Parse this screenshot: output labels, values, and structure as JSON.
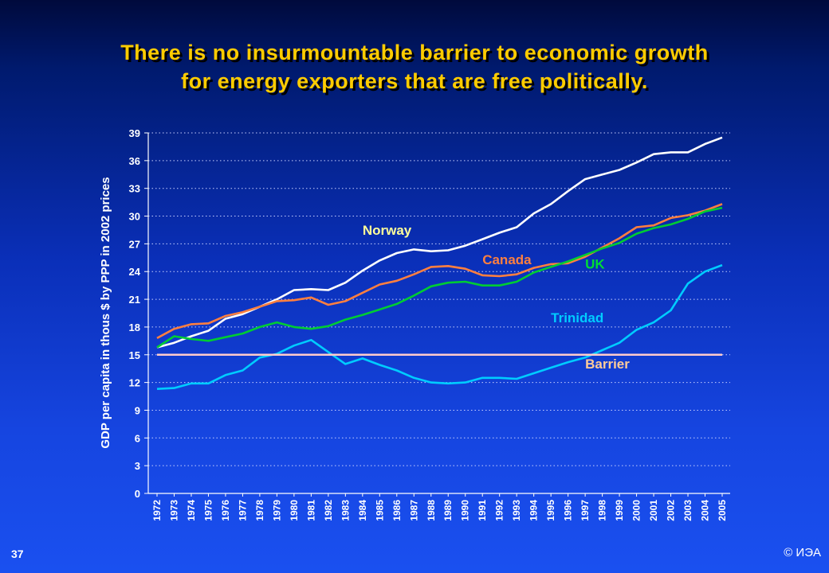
{
  "slide": {
    "title_line1": "There is no insurmountable barrier to economic growth",
    "title_line2": "for energy exporters that are free politically.",
    "number": "37",
    "copyright": "© ИЭА"
  },
  "chart_data": {
    "type": "line",
    "title": "",
    "xlabel": "",
    "ylabel": "GDP per capita in thous $ by PPP in 2002 prices",
    "ylim": [
      0,
      39
    ],
    "yticks": [
      0,
      3,
      6,
      9,
      12,
      15,
      18,
      21,
      24,
      27,
      30,
      33,
      36,
      39
    ],
    "grid": "horizontal-dotted",
    "legend": "inline-labels",
    "categories": [
      "1972",
      "1973",
      "1974",
      "1975",
      "1976",
      "1977",
      "1978",
      "1979",
      "1980",
      "1981",
      "1982",
      "1983",
      "1984",
      "1985",
      "1986",
      "1987",
      "1988",
      "1989",
      "1990",
      "1991",
      "1992",
      "1993",
      "1994",
      "1995",
      "1996",
      "1997",
      "1998",
      "1999",
      "2000",
      "2001",
      "2002",
      "2003",
      "2004",
      "2005"
    ],
    "series": [
      {
        "name": "Norway",
        "color": "#ffffff",
        "label_color": "#ffff99",
        "values": [
          15.8,
          16.3,
          17.0,
          17.6,
          18.9,
          19.4,
          20.2,
          21.0,
          22.0,
          22.1,
          22.0,
          22.8,
          24.1,
          25.2,
          26.0,
          26.4,
          26.2,
          26.3,
          26.8,
          27.5,
          28.2,
          28.8,
          30.3,
          31.3,
          32.7,
          34.0,
          34.5,
          35.0,
          35.8,
          36.7,
          36.9,
          36.9,
          37.8,
          38.5
        ]
      },
      {
        "name": "Canada",
        "color": "#ff7f3f",
        "label_color": "#ff7f3f",
        "values": [
          16.8,
          17.8,
          18.3,
          18.4,
          19.2,
          19.6,
          20.2,
          20.8,
          20.9,
          21.2,
          20.4,
          20.8,
          21.7,
          22.6,
          23.0,
          23.7,
          24.5,
          24.6,
          24.3,
          23.6,
          23.5,
          23.7,
          24.4,
          24.8,
          24.9,
          25.6,
          26.6,
          27.6,
          28.8,
          29.0,
          29.8,
          30.1,
          30.6,
          31.3
        ]
      },
      {
        "name": "UK",
        "color": "#00cc33",
        "label_color": "#00dd33",
        "values": [
          15.8,
          17.0,
          16.7,
          16.5,
          16.9,
          17.3,
          18.0,
          18.5,
          18.0,
          17.8,
          18.1,
          18.8,
          19.3,
          19.9,
          20.5,
          21.4,
          22.4,
          22.8,
          22.9,
          22.5,
          22.5,
          22.9,
          23.9,
          24.5,
          25.1,
          25.8,
          26.5,
          27.1,
          28.1,
          28.7,
          29.1,
          29.7,
          30.5,
          30.9
        ]
      },
      {
        "name": "Trinidad",
        "color": "#00ccff",
        "label_color": "#00ccff",
        "values": [
          11.3,
          11.4,
          11.9,
          11.9,
          12.8,
          13.3,
          14.7,
          15.1,
          16.0,
          16.6,
          15.3,
          14.0,
          14.6,
          13.9,
          13.3,
          12.5,
          12.0,
          11.9,
          12.0,
          12.5,
          12.5,
          12.4,
          13.0,
          13.6,
          14.2,
          14.7,
          15.5,
          16.3,
          17.7,
          18.5,
          19.8,
          22.7,
          24.0,
          24.7
        ]
      },
      {
        "name": "Barrier",
        "color": "#ffcccc",
        "label_color": "#ffcc99",
        "values": [
          15.0,
          15.0,
          15.0,
          15.0,
          15.0,
          15.0,
          15.0,
          15.0,
          15.0,
          15.0,
          15.0,
          15.0,
          15.0,
          15.0,
          15.0,
          15.0,
          15.0,
          15.0,
          15.0,
          15.0,
          15.0,
          15.0,
          15.0,
          15.0,
          15.0,
          15.0,
          15.0,
          15.0,
          15.0,
          15.0,
          15.0,
          15.0,
          15.0,
          15.0
        ]
      }
    ],
    "annotations": [
      {
        "text": "Norway",
        "series": "Norway",
        "x": "1984",
        "y": 28.0
      },
      {
        "text": "Canada",
        "series": "Canada",
        "x": "1991",
        "y": 24.8
      },
      {
        "text": "UK",
        "series": "UK",
        "x": "1997",
        "y": 24.3
      },
      {
        "text": "Trinidad",
        "series": "Trinidad",
        "x": "1995",
        "y": 18.5
      },
      {
        "text": "Barrier",
        "series": "Barrier",
        "x": "1997",
        "y": 13.5
      }
    ]
  }
}
